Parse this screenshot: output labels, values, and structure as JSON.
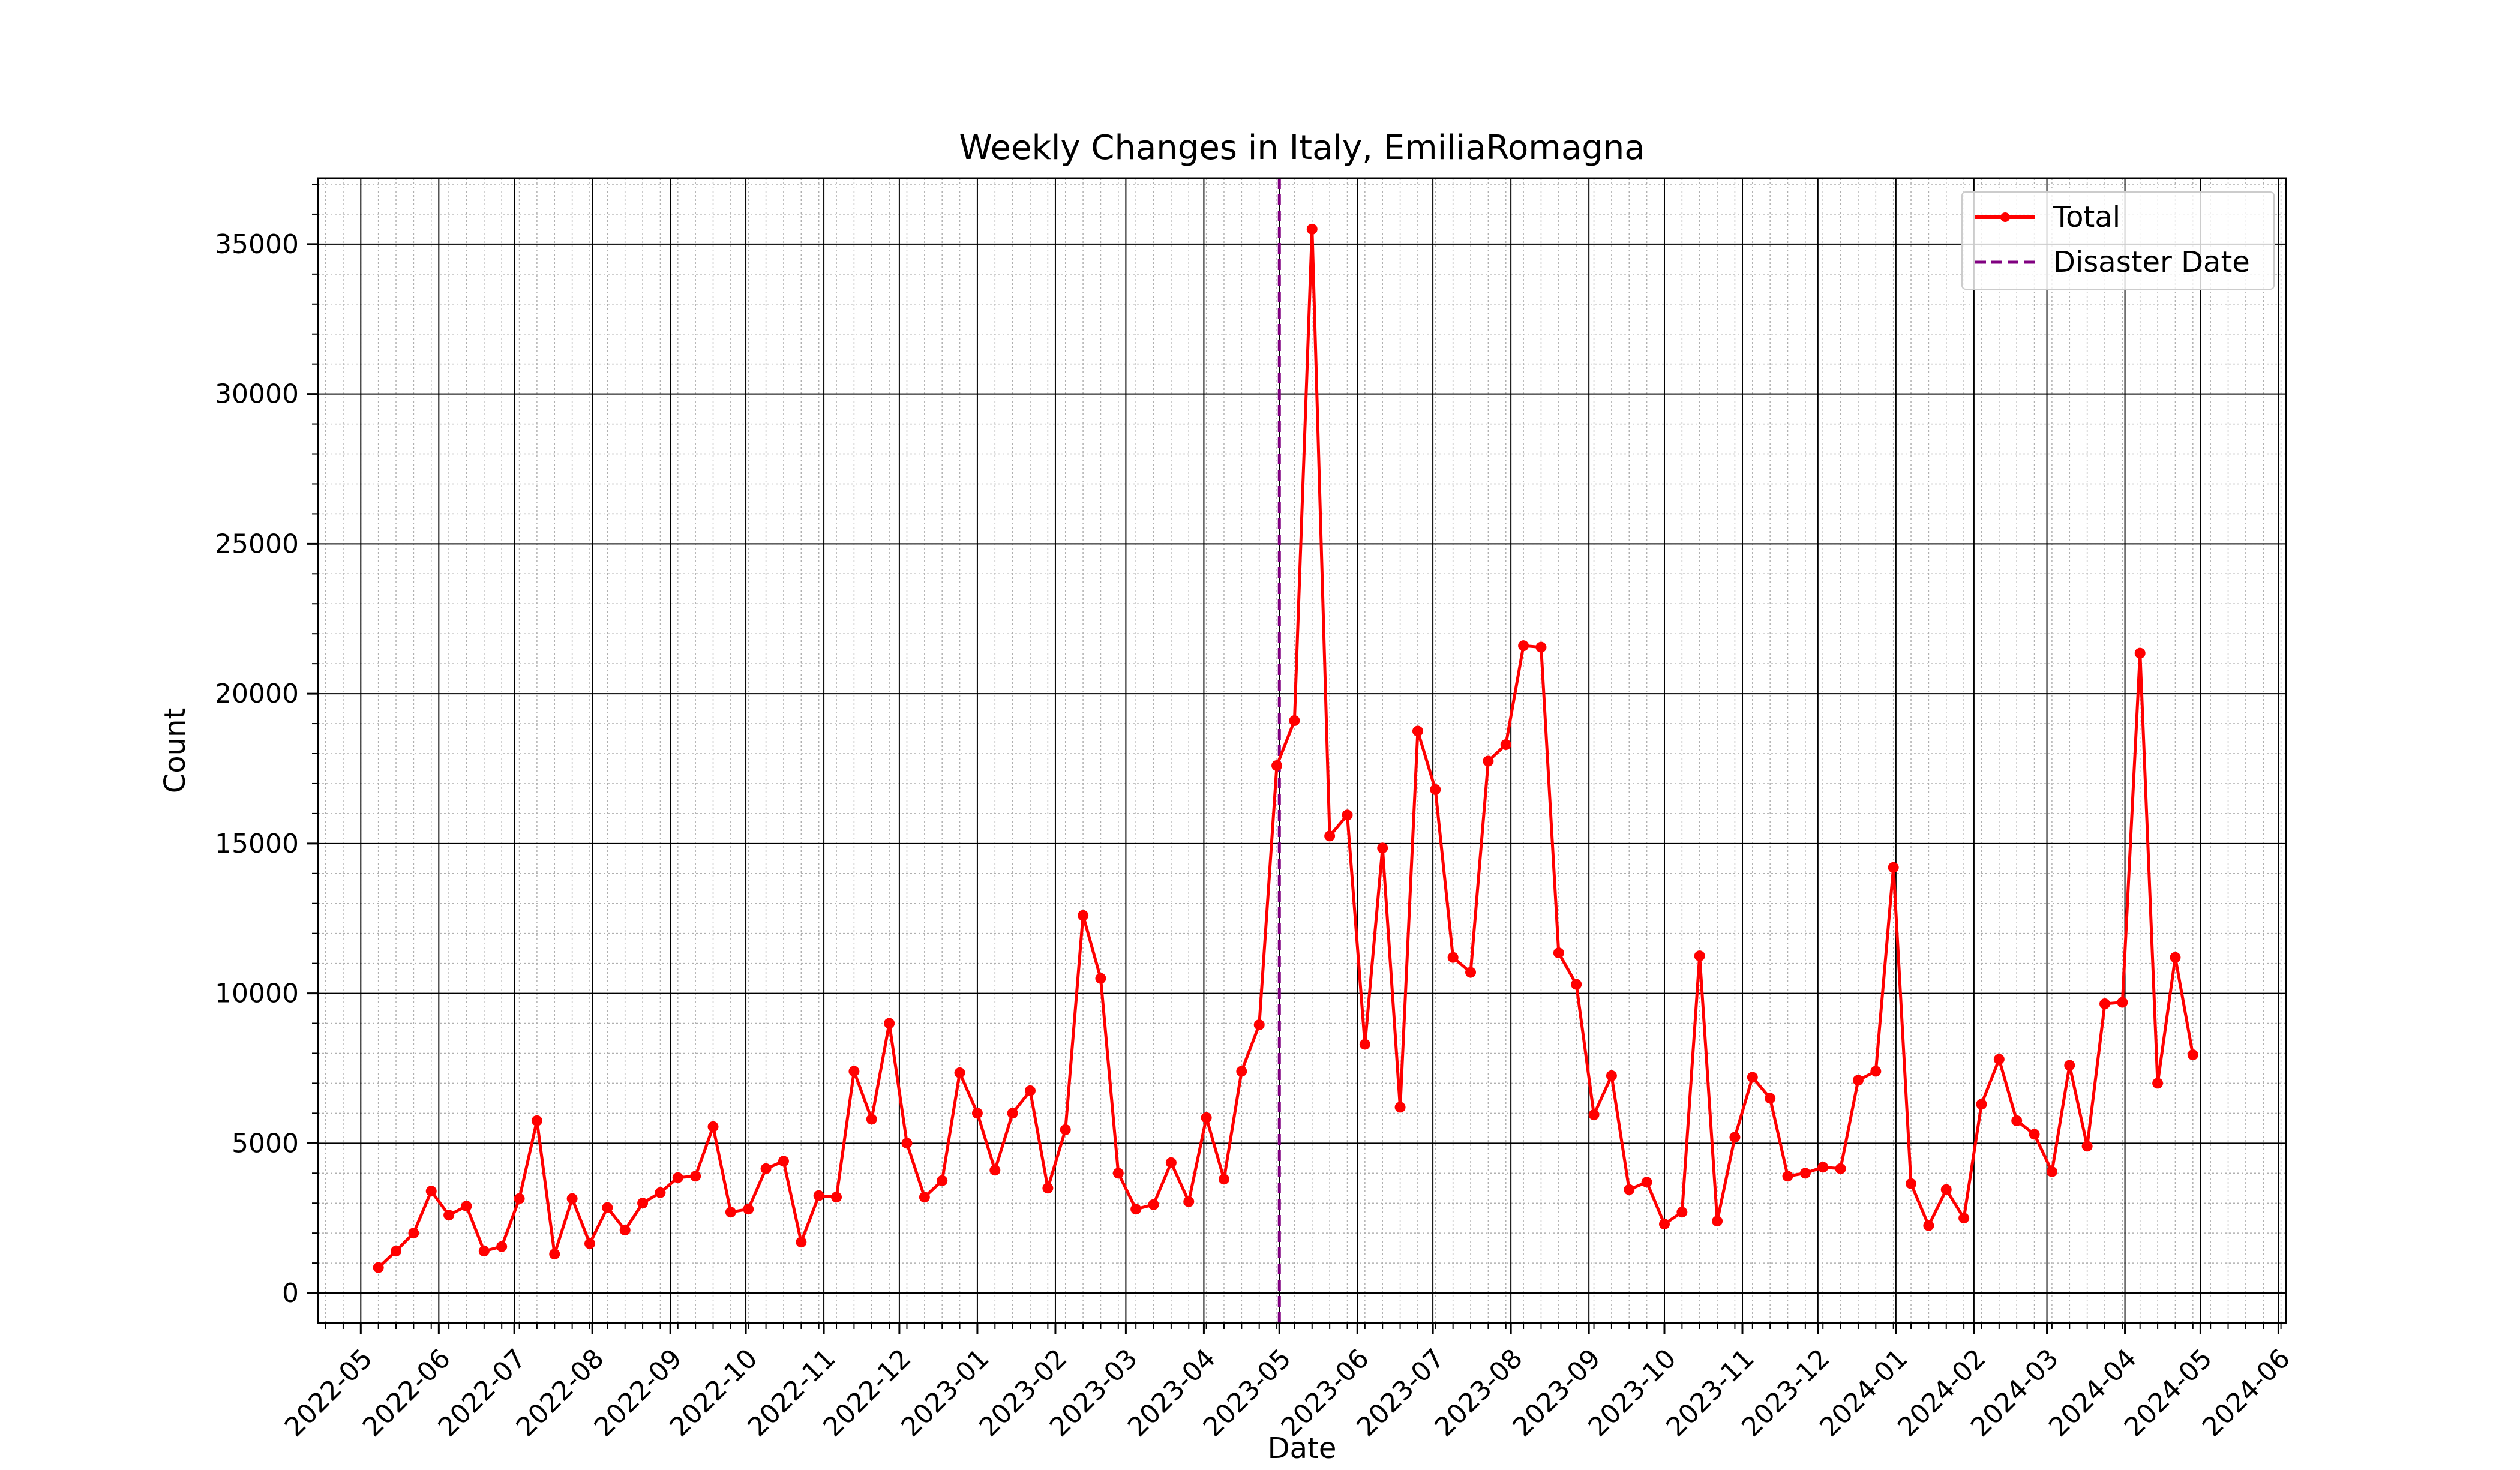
{
  "chart_data": {
    "type": "line",
    "title": "Weekly Changes in Italy, EmiliaRomagna",
    "xlabel": "Date",
    "ylabel": "Count",
    "ylim": [
      -1000,
      37200
    ],
    "xlim": [
      "2022-04-14",
      "2024-06-04"
    ],
    "y_ticks": [
      0,
      5000,
      10000,
      15000,
      20000,
      25000,
      30000,
      35000
    ],
    "y_tick_labels": [
      "0",
      "5000",
      "10000",
      "15000",
      "20000",
      "25000",
      "30000",
      "35000"
    ],
    "x_tick_labels": [
      "2022-05",
      "2022-06",
      "2022-07",
      "2022-08",
      "2022-09",
      "2022-10",
      "2022-11",
      "2022-12",
      "2023-01",
      "2023-02",
      "2023-03",
      "2023-04",
      "2023-05",
      "2023-06",
      "2023-07",
      "2023-08",
      "2023-09",
      "2023-10",
      "2023-11",
      "2023-12",
      "2024-01",
      "2024-02",
      "2024-03",
      "2024-04",
      "2024-05",
      "2024-06"
    ],
    "x_tick_dates": [
      "2022-05-01",
      "2022-06-01",
      "2022-07-01",
      "2022-08-01",
      "2022-09-01",
      "2022-10-01",
      "2022-11-01",
      "2022-12-01",
      "2023-01-01",
      "2023-02-01",
      "2023-03-01",
      "2023-04-01",
      "2023-05-01",
      "2023-06-01",
      "2023-07-01",
      "2023-08-01",
      "2023-09-01",
      "2023-10-01",
      "2023-11-01",
      "2023-12-01",
      "2024-01-01",
      "2024-02-01",
      "2024-03-01",
      "2024-04-01",
      "2024-05-01",
      "2024-06-01"
    ],
    "grid": {
      "major": true,
      "minor": true
    },
    "legend_position": "top-right",
    "series": [
      {
        "name": "Total",
        "color": "#ff0000",
        "marker": "circle",
        "x": [
          "2022-05-08",
          "2022-05-15",
          "2022-05-22",
          "2022-05-29",
          "2022-06-05",
          "2022-06-12",
          "2022-06-19",
          "2022-06-26",
          "2022-07-03",
          "2022-07-10",
          "2022-07-17",
          "2022-07-24",
          "2022-07-31",
          "2022-08-07",
          "2022-08-14",
          "2022-08-21",
          "2022-08-28",
          "2022-09-04",
          "2022-09-11",
          "2022-09-18",
          "2022-09-25",
          "2022-10-02",
          "2022-10-09",
          "2022-10-16",
          "2022-10-23",
          "2022-10-30",
          "2022-11-06",
          "2022-11-13",
          "2022-11-20",
          "2022-11-27",
          "2022-12-04",
          "2022-12-11",
          "2022-12-18",
          "2022-12-25",
          "2023-01-01",
          "2023-01-08",
          "2023-01-15",
          "2023-01-22",
          "2023-01-29",
          "2023-02-05",
          "2023-02-12",
          "2023-02-19",
          "2023-02-26",
          "2023-03-05",
          "2023-03-12",
          "2023-03-19",
          "2023-03-26",
          "2023-04-02",
          "2023-04-09",
          "2023-04-16",
          "2023-04-23",
          "2023-04-30",
          "2023-05-07",
          "2023-05-14",
          "2023-05-21",
          "2023-05-28",
          "2023-06-04",
          "2023-06-11",
          "2023-06-18",
          "2023-06-25",
          "2023-07-02",
          "2023-07-09",
          "2023-07-16",
          "2023-07-23",
          "2023-07-30",
          "2023-08-06",
          "2023-08-13",
          "2023-08-20",
          "2023-08-27",
          "2023-09-03",
          "2023-09-10",
          "2023-09-17",
          "2023-09-24",
          "2023-10-01",
          "2023-10-08",
          "2023-10-15",
          "2023-10-22",
          "2023-10-29",
          "2023-11-05",
          "2023-11-12",
          "2023-11-19",
          "2023-11-26",
          "2023-12-03",
          "2023-12-10",
          "2023-12-17",
          "2023-12-24",
          "2023-12-31",
          "2024-01-07",
          "2024-01-14",
          "2024-01-21",
          "2024-01-28",
          "2024-02-04",
          "2024-02-11",
          "2024-02-18",
          "2024-02-25",
          "2024-03-03",
          "2024-03-10",
          "2024-03-17",
          "2024-03-24",
          "2024-03-31",
          "2024-04-07",
          "2024-04-14",
          "2024-04-21",
          "2024-04-28"
        ],
        "y": [
          850,
          1400,
          2000,
          3400,
          2600,
          2900,
          1400,
          1550,
          3150,
          5750,
          1300,
          3150,
          1650,
          2850,
          2100,
          3000,
          3350,
          3850,
          3900,
          5550,
          2700,
          2800,
          4150,
          4400,
          1700,
          3250,
          3200,
          7400,
          5800,
          9000,
          5000,
          3200,
          3750,
          7350,
          6000,
          4100,
          6000,
          6750,
          3500,
          5450,
          12600,
          10500,
          4000,
          2800,
          2950,
          4350,
          3050,
          5850,
          3800,
          7400,
          8950,
          17600,
          19100,
          35500,
          15250,
          15950,
          8300,
          14850,
          6200,
          18750,
          16800,
          11200,
          10700,
          17750,
          18300,
          21600,
          21550,
          11350,
          10300,
          5950,
          7250,
          3450,
          3700,
          2300,
          2700,
          11250,
          2400,
          5200,
          7200,
          6500,
          3900,
          4000,
          4200,
          4150,
          7100,
          7400,
          14200,
          3650,
          2250,
          3450,
          2500,
          6300,
          7800,
          5750,
          5300,
          4050,
          7600,
          4900,
          9650,
          9700,
          21350,
          7000,
          11200,
          7950
        ]
      }
    ],
    "reference_lines": [
      {
        "name": "Disaster Date",
        "x": "2023-05-01",
        "color": "#800080",
        "style": "dashed"
      }
    ]
  }
}
